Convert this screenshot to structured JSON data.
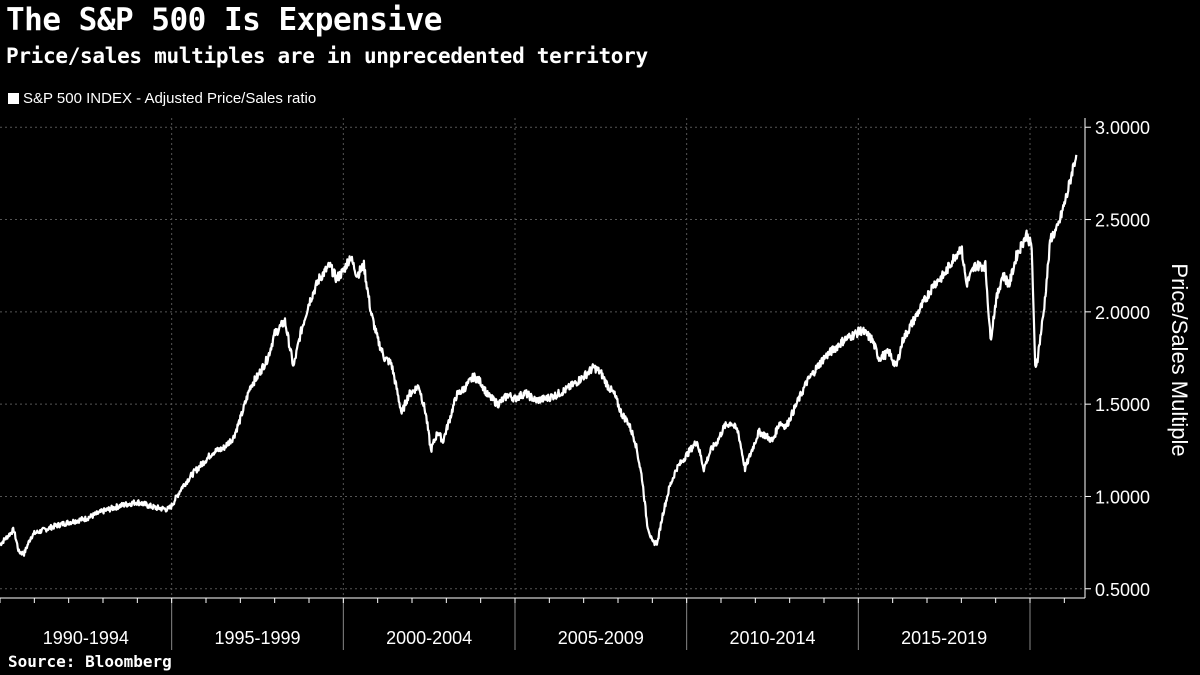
{
  "title": "The S&P 500 Is Expensive",
  "subtitle": "Price/sales multiples are in unprecedented territory",
  "source": "Source: Bloomberg",
  "colors": {
    "background": "#000000",
    "series": "#ffffff",
    "grid": "#555555"
  },
  "chart_data": {
    "type": "line",
    "title": "The S&P 500 Is Expensive",
    "subtitle": "Price/sales multiples are in unprecedented territory",
    "ylabel": "Price/Sales Multiple",
    "xlabel": "",
    "ylim": [
      0.45,
      3.05
    ],
    "xlim": [
      1990.0,
      2021.4
    ],
    "y_ticks": [
      "0.5000",
      "1.0000",
      "1.5000",
      "2.0000",
      "2.5000",
      "3.0000"
    ],
    "x_categories": [
      "1990-1994",
      "1995-1999",
      "2000-2004",
      "2005-2009",
      "2010-2014",
      "2015-2019"
    ],
    "grid": true,
    "legend": "top-left",
    "series": [
      {
        "name": "S&P 500 INDEX - Adjusted Price/Sales ratio",
        "color": "#ffffff",
        "x": [
          1990.0,
          1990.2,
          1990.4,
          1990.55,
          1990.7,
          1990.9,
          1991.0,
          1991.3,
          1991.6,
          1992.0,
          1992.5,
          1993.0,
          1993.5,
          1994.0,
          1994.5,
          1994.9,
          1995.0,
          1995.3,
          1995.6,
          1995.9,
          1996.2,
          1996.5,
          1996.8,
          1997.0,
          1997.3,
          1997.5,
          1997.8,
          1998.0,
          1998.3,
          1998.55,
          1998.75,
          1999.0,
          1999.3,
          1999.6,
          1999.8,
          2000.0,
          2000.2,
          2000.4,
          2000.6,
          2000.8,
          2001.0,
          2001.2,
          2001.4,
          2001.7,
          2001.9,
          2002.2,
          2002.4,
          2002.55,
          2002.75,
          2002.9,
          2003.1,
          2003.3,
          2003.5,
          2003.8,
          2004.0,
          2004.2,
          2004.5,
          2004.8,
          2005.0,
          2005.3,
          2005.6,
          2005.9,
          2006.2,
          2006.5,
          2006.8,
          2007.0,
          2007.3,
          2007.5,
          2007.7,
          2007.9,
          2008.1,
          2008.3,
          2008.5,
          2008.7,
          2008.85,
          2009.0,
          2009.15,
          2009.3,
          2009.5,
          2009.7,
          2009.9,
          2010.1,
          2010.3,
          2010.5,
          2010.7,
          2010.9,
          2011.1,
          2011.3,
          2011.5,
          2011.7,
          2011.9,
          2012.1,
          2012.3,
          2012.5,
          2012.7,
          2012.9,
          2013.2,
          2013.5,
          2013.8,
          2014.0,
          2014.3,
          2014.6,
          2014.9,
          2015.1,
          2015.4,
          2015.6,
          2015.9,
          2016.1,
          2016.3,
          2016.6,
          2016.9,
          2017.2,
          2017.5,
          2017.8,
          2018.0,
          2018.15,
          2018.4,
          2018.7,
          2018.85,
          2019.0,
          2019.2,
          2019.4,
          2019.6,
          2019.9,
          2020.05,
          2020.15,
          2020.22,
          2020.4,
          2020.6,
          2020.8,
          2020.95,
          2021.1,
          2021.25,
          2021.35
        ],
        "y": [
          0.74,
          0.78,
          0.82,
          0.7,
          0.69,
          0.78,
          0.8,
          0.82,
          0.84,
          0.86,
          0.88,
          0.92,
          0.95,
          0.97,
          0.94,
          0.93,
          0.95,
          1.05,
          1.12,
          1.18,
          1.24,
          1.26,
          1.32,
          1.42,
          1.6,
          1.65,
          1.75,
          1.88,
          1.95,
          1.7,
          1.88,
          2.05,
          2.18,
          2.25,
          2.18,
          2.22,
          2.3,
          2.2,
          2.25,
          2.0,
          1.85,
          1.75,
          1.72,
          1.45,
          1.55,
          1.6,
          1.45,
          1.25,
          1.35,
          1.3,
          1.42,
          1.55,
          1.58,
          1.65,
          1.62,
          1.55,
          1.5,
          1.55,
          1.53,
          1.56,
          1.52,
          1.53,
          1.55,
          1.58,
          1.62,
          1.65,
          1.7,
          1.67,
          1.6,
          1.55,
          1.45,
          1.4,
          1.3,
          1.1,
          0.85,
          0.75,
          0.75,
          0.9,
          1.05,
          1.15,
          1.2,
          1.25,
          1.3,
          1.15,
          1.25,
          1.3,
          1.38,
          1.4,
          1.35,
          1.15,
          1.25,
          1.35,
          1.33,
          1.3,
          1.4,
          1.38,
          1.5,
          1.62,
          1.7,
          1.75,
          1.8,
          1.85,
          1.88,
          1.9,
          1.85,
          1.75,
          1.78,
          1.7,
          1.85,
          1.95,
          2.05,
          2.15,
          2.2,
          2.3,
          2.35,
          2.15,
          2.25,
          2.25,
          1.85,
          2.05,
          2.2,
          2.15,
          2.3,
          2.42,
          2.35,
          1.7,
          1.75,
          2.0,
          2.4,
          2.45,
          2.55,
          2.65,
          2.78,
          2.85
        ]
      }
    ]
  }
}
